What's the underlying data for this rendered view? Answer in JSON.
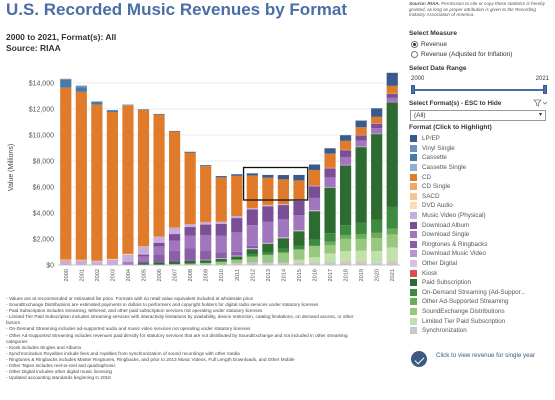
{
  "header": {
    "title": "U.S. Recorded Music Revenues by Format",
    "subtitle_line1": "2000 to 2021, Format(s): All",
    "subtitle_line2": "Source: RIAA"
  },
  "source_note": {
    "label": "Source: RIAA.",
    "text": "Permission to cite or copy these statistics is hereby granted, as long as proper attribution is given to the Recording Industry Association of America."
  },
  "controls": {
    "measure_heading": "Select Measure",
    "measure_options": [
      "Revenue",
      "Revenue (Adjusted for Inflation)"
    ],
    "measure_selected": 0,
    "range_heading": "Select Date Range",
    "range_start": "2000",
    "range_end": "2021",
    "format_heading": "Select Format(s) - ESC to Hide",
    "format_selected": "(All)",
    "legend_heading": "Format (Click to Highlight)"
  },
  "legend": [
    {
      "label": "LP/EP",
      "color": "#3a5a8c"
    },
    {
      "label": "Vinyl Single",
      "color": "#6f8fbf"
    },
    {
      "label": "Cassette",
      "color": "#4a78a8"
    },
    {
      "label": "Cassette Single",
      "color": "#8bb0d6"
    },
    {
      "label": "CD",
      "color": "#e07b2c"
    },
    {
      "label": "CD Single",
      "color": "#f0a868"
    },
    {
      "label": "SACD",
      "color": "#f5c58f"
    },
    {
      "label": "DVD Audio",
      "color": "#f9dcb6"
    },
    {
      "label": "Music Video (Physical)",
      "color": "#c8aee0"
    },
    {
      "label": "Download Album",
      "color": "#7a4f96"
    },
    {
      "label": "Download Single",
      "color": "#a276be"
    },
    {
      "label": "Ringtones & Ringbacks",
      "color": "#8c5ea9"
    },
    {
      "label": "Download Music Video",
      "color": "#b896d0"
    },
    {
      "label": "Other Digital",
      "color": "#d6c1e6"
    },
    {
      "label": "Kiosk",
      "color": "#d94f4f"
    },
    {
      "label": "Paid Subscription",
      "color": "#2e6b30"
    },
    {
      "label": "On-Demand Streaming (Ad-Suppor...",
      "color": "#3e8a40"
    },
    {
      "label": "Other Ad-Supported Streaming",
      "color": "#6cab5a"
    },
    {
      "label": "SoundExchange Distributions",
      "color": "#98c87f"
    },
    {
      "label": "Limited Tier Paid Subscription",
      "color": "#c1e0ac"
    },
    {
      "label": "Synchronization",
      "color": "#c9c9c9"
    }
  ],
  "footnotes": [
    "- Values are at recommended or estimated list price. Formats with no retail value equivalent included at wholesale price",
    "- SoundExchange Distributions are estimated payments in dollars to performers and copyright holders for digital radio services under statutory licenses",
    "- Paid Subscription includes streaming, tethered, and other paid subscription services not operating under statutory licenses",
    "- Limited Tier Paid Subscription includes streaming services with interactivity limitations by availability, device restriction, catalog limitations, on demand access, or other",
    "factors",
    "- On-Demand Streaming includes ad-supported audio and music video services not operating under statutory licenses",
    "- Other Ad-Supported Streaming includes revenues paid directly for statutory services that are not distributed by SoundExchange and not included in other streaming",
    "categories",
    "- Kiosk includes Singles and Albums",
    "- Synchronization Royalties include fees and royalties from synchronization of sound recordings with other media",
    "- Ringtones & Ringbacks includes Master Ringtunes, Ringbacks, and prior to 2013 Music Videos, Full Length Downloads, and Other Mobile",
    "- Other Tapes includes reel-to-reel and quadraphonic",
    "- Other Digital includes other digital music licensing",
    "- Updated accounting standards beginning in 2016"
  ],
  "click_widget": {
    "text": "Click to view revenue for single year"
  },
  "chart_data": {
    "type": "bar",
    "stacked": true,
    "ylabel": "Value (Millions)",
    "ylim": [
      0,
      15000
    ],
    "yticks": [
      0,
      2000,
      4000,
      6000,
      8000,
      10000,
      12000,
      14000
    ],
    "ytick_labels": [
      "$0",
      "$2,000",
      "$4,000",
      "$6,000",
      "$8,000",
      "$10,000",
      "$12,000",
      "$14,000"
    ],
    "grid": true,
    "highlight_years": [
      "2012",
      "2015"
    ],
    "categories": [
      "2000",
      "2001",
      "2002",
      "2003",
      "2004",
      "2005",
      "2006",
      "2007",
      "2008",
      "2009",
      "2010",
      "2011",
      "2012",
      "2013",
      "2014",
      "2015",
      "2016",
      "2017",
      "2018",
      "2019",
      "2020",
      "2021"
    ],
    "series": [
      {
        "name": "Synchronization",
        "color": "#c9c9c9",
        "values": [
          0,
          0,
          0,
          0,
          0,
          0,
          0,
          0,
          0,
          0,
          0,
          130,
          190,
          190,
          190,
          200,
          190,
          230,
          290,
          280,
          170,
          300
        ]
      },
      {
        "name": "Limited Tier Paid Subscription",
        "color": "#c1e0ac",
        "values": [
          0,
          0,
          0,
          0,
          0,
          0,
          0,
          0,
          0,
          0,
          0,
          0,
          0,
          0,
          0,
          200,
          400,
          660,
          770,
          830,
          900,
          1050
        ]
      },
      {
        "name": "SoundExchange Distributions",
        "color": "#98c87f",
        "values": [
          0,
          0,
          0,
          0,
          0,
          0,
          0,
          80,
          100,
          160,
          250,
          290,
          460,
          590,
          770,
          800,
          880,
          650,
          950,
          900,
          1000,
          1000
        ]
      },
      {
        "name": "Other Ad-Supported Streaming",
        "color": "#6cab5a",
        "values": [
          0,
          0,
          0,
          0,
          0,
          0,
          0,
          0,
          0,
          0,
          0,
          0,
          0,
          0,
          0,
          0,
          0,
          250,
          300,
          350,
          400,
          450
        ]
      },
      {
        "name": "On-Demand Streaming (Ad-Supported)",
        "color": "#3e8a40",
        "values": [
          0,
          0,
          0,
          0,
          0,
          0,
          0,
          0,
          0,
          0,
          0,
          0,
          170,
          220,
          300,
          300,
          470,
          660,
          750,
          910,
          1000,
          1700
        ]
      },
      {
        "name": "Paid Subscription",
        "color": "#2e6b30",
        "values": [
          0,
          0,
          0,
          0,
          0,
          150,
          210,
          200,
          220,
          210,
          210,
          240,
          400,
          640,
          800,
          1100,
          2200,
          3500,
          4600,
          5800,
          6600,
          8000
        ]
      },
      {
        "name": "Kiosk",
        "color": "#d94f4f",
        "values": [
          0,
          0,
          0,
          0,
          0,
          0,
          0,
          0,
          0,
          0,
          0,
          0,
          0,
          0,
          0,
          0,
          0,
          0,
          0,
          0,
          0,
          0
        ]
      },
      {
        "name": "Other Digital",
        "color": "#d6c1e6",
        "values": [
          0,
          0,
          0,
          0,
          0,
          0,
          0,
          0,
          0,
          20,
          40,
          50,
          60,
          60,
          60,
          60,
          60,
          50,
          40,
          30,
          30,
          30
        ]
      },
      {
        "name": "Download Music Video",
        "color": "#b896d0",
        "values": [
          0,
          0,
          0,
          0,
          0,
          0,
          0,
          0,
          0,
          20,
          20,
          20,
          20,
          20,
          20,
          20,
          20,
          10,
          10,
          10,
          10,
          10
        ]
      },
      {
        "name": "Ringtones & Ringbacks",
        "color": "#8c5ea9",
        "values": [
          0,
          0,
          0,
          0,
          0,
          150,
          620,
          800,
          950,
          700,
          450,
          280,
          170,
          100,
          70,
          60,
          40,
          30,
          25,
          20,
          15,
          15
        ]
      },
      {
        "name": "Download Single",
        "color": "#a276be",
        "values": [
          0,
          0,
          0,
          0,
          150,
          360,
          600,
          800,
          1000,
          1200,
          1300,
          1500,
          1600,
          1500,
          1300,
          1100,
          900,
          700,
          550,
          450,
          400,
          300
        ]
      },
      {
        "name": "Download Album",
        "color": "#7a4f96",
        "values": [
          0,
          0,
          0,
          0,
          50,
          140,
          280,
          500,
          650,
          800,
          900,
          1100,
          1200,
          1200,
          1100,
          1100,
          900,
          700,
          550,
          400,
          350,
          300
        ]
      },
      {
        "name": "Music Video (Physical)",
        "color": "#c8aee0",
        "values": [
          300,
          330,
          300,
          400,
          600,
          600,
          450,
          480,
          220,
          200,
          170,
          150,
          110,
          100,
          80,
          60,
          40,
          30,
          20,
          20,
          20,
          20
        ]
      },
      {
        "name": "DVD Audio",
        "color": "#f9dcb6",
        "values": [
          0,
          10,
          10,
          10,
          10,
          10,
          10,
          0,
          0,
          0,
          0,
          0,
          0,
          0,
          0,
          0,
          0,
          0,
          0,
          0,
          0,
          0
        ]
      },
      {
        "name": "SACD",
        "color": "#f5c58f",
        "values": [
          0,
          0,
          0,
          30,
          30,
          20,
          10,
          10,
          0,
          0,
          0,
          0,
          0,
          0,
          0,
          0,
          0,
          0,
          0,
          0,
          0,
          0
        ]
      },
      {
        "name": "CD Single",
        "color": "#f0a868",
        "values": [
          140,
          80,
          20,
          30,
          20,
          10,
          10,
          10,
          5,
          5,
          5,
          5,
          5,
          5,
          5,
          5,
          5,
          5,
          5,
          5,
          5,
          5
        ]
      },
      {
        "name": "CD",
        "color": "#e07b2c",
        "values": [
          13200,
          12900,
          12000,
          11300,
          11400,
          10500,
          9400,
          7400,
          5500,
          4300,
          3400,
          3100,
          2500,
          2100,
          1900,
          1500,
          1200,
          1100,
          700,
          600,
          500,
          600
        ]
      },
      {
        "name": "Cassette Single",
        "color": "#8bb0d6",
        "values": [
          0,
          0,
          0,
          0,
          0,
          0,
          0,
          0,
          0,
          0,
          0,
          0,
          0,
          0,
          0,
          0,
          0,
          0,
          0,
          0,
          0,
          0
        ]
      },
      {
        "name": "Cassette",
        "color": "#4a78a8",
        "values": [
          620,
          360,
          210,
          110,
          30,
          10,
          5,
          5,
          0,
          0,
          0,
          0,
          0,
          0,
          0,
          0,
          0,
          0,
          0,
          0,
          0,
          0
        ]
      },
      {
        "name": "Vinyl Single",
        "color": "#6f8fbf",
        "values": [
          30,
          80,
          20,
          20,
          20,
          10,
          10,
          5,
          5,
          5,
          5,
          5,
          5,
          5,
          5,
          5,
          5,
          5,
          5,
          5,
          5,
          5
        ]
      },
      {
        "name": "LP/EP",
        "color": "#3a5a8c",
        "values": [
          30,
          30,
          20,
          20,
          20,
          15,
          15,
          20,
          60,
          60,
          90,
          110,
          160,
          200,
          320,
          420,
          420,
          400,
          420,
          500,
          650,
          1000
        ]
      }
    ]
  }
}
